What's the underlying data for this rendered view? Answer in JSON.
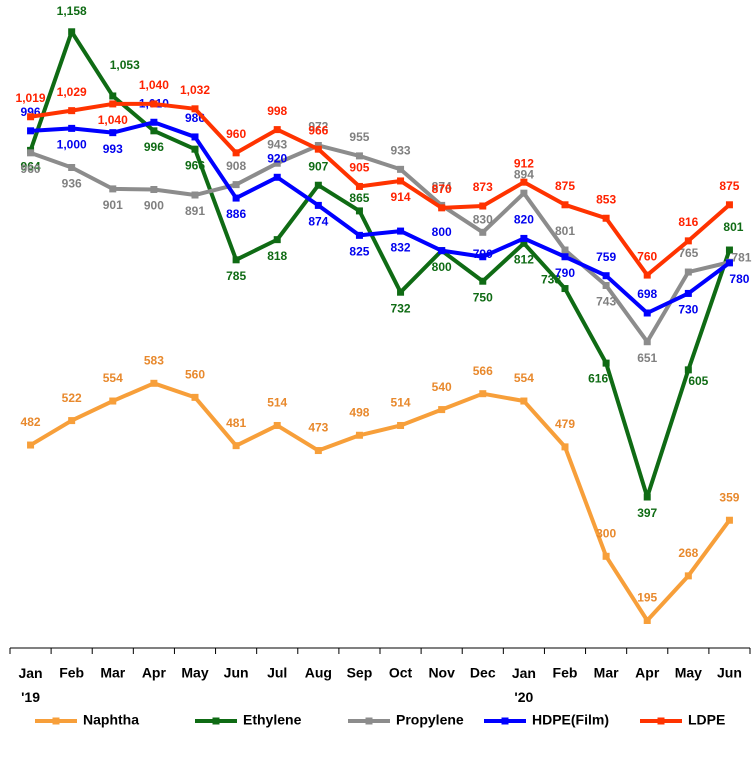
{
  "chart_data": {
    "type": "line",
    "categories": [
      "Jan '19",
      "Feb",
      "Mar",
      "Apr",
      "May",
      "Jun",
      "Jul",
      "Aug",
      "Sep",
      "Oct",
      "Nov",
      "Dec",
      "Jan '20",
      "Feb",
      "Mar",
      "Apr",
      "May",
      "Jun"
    ],
    "ylim": [
      150,
      1210
    ],
    "series": [
      {
        "name": "Naphtha",
        "color": "#f79f3a",
        "label_color": "#e8892d",
        "values": [
          482,
          522,
          554,
          583,
          560,
          481,
          514,
          473,
          498,
          514,
          540,
          566,
          554,
          479,
          300,
          195,
          268,
          359
        ],
        "value_labels": [
          "482",
          "522",
          "554",
          "583",
          "560",
          "481",
          "514",
          "473",
          "498",
          "514",
          "540",
          "566",
          "554",
          "479",
          "300",
          "195",
          "268",
          "359"
        ]
      },
      {
        "name": "Ethylene",
        "color": "#0f6b14",
        "label_color": "#0f6b14",
        "values": [
          964,
          1158,
          1053,
          996,
          966,
          785,
          818,
          907,
          865,
          732,
          800,
          750,
          812,
          738,
          616,
          397,
          605,
          801
        ],
        "value_labels": [
          "964",
          "1,158",
          "1,053",
          "996",
          "966",
          "785",
          "818",
          "907",
          "865",
          "732",
          "800",
          "750",
          "812",
          "738",
          "616",
          "397",
          "605",
          "801"
        ]
      },
      {
        "name": "Propylene",
        "color": "#8c8c8c",
        "label_color": "#808080",
        "values": [
          960,
          936,
          901,
          900,
          891,
          908,
          943,
          972,
          955,
          933,
          874,
          830,
          894,
          801,
          743,
          651,
          765,
          781
        ],
        "value_labels": [
          "960",
          "936",
          "901",
          "900",
          "891",
          "908",
          "943",
          "972",
          "955",
          "933",
          "874",
          "830",
          "894",
          "801",
          "743",
          "651",
          "765",
          "781"
        ]
      },
      {
        "name": "HDPE(Film)",
        "color": "#0000ff",
        "label_color": "#0000ee",
        "values": [
          996,
          1000,
          993,
          1010,
          986,
          886,
          920,
          874,
          825,
          832,
          800,
          790,
          820,
          790,
          759,
          698,
          730,
          780
        ],
        "value_labels": [
          "996",
          "1,000",
          "993",
          "1,010",
          "986",
          "886",
          "920",
          "874",
          "825",
          "832",
          "800",
          "790",
          "820",
          "790",
          "759",
          "698",
          "730",
          "780"
        ]
      },
      {
        "name": "LDPE",
        "color": "#ff3300",
        "label_color": "#ff2200",
        "values": [
          1019,
          1029,
          1040,
          1040,
          1032,
          960,
          998,
          966,
          905,
          914,
          870,
          873,
          912,
          875,
          853,
          760,
          816,
          875
        ],
        "value_labels": [
          "1,019",
          "1,029",
          "1,040",
          "1,040",
          "1,032",
          "960",
          "998",
          "966",
          "905",
          "914",
          "870",
          "873",
          "912",
          "875",
          "853",
          "760",
          "816",
          "875"
        ]
      }
    ],
    "legend": "bottom"
  }
}
